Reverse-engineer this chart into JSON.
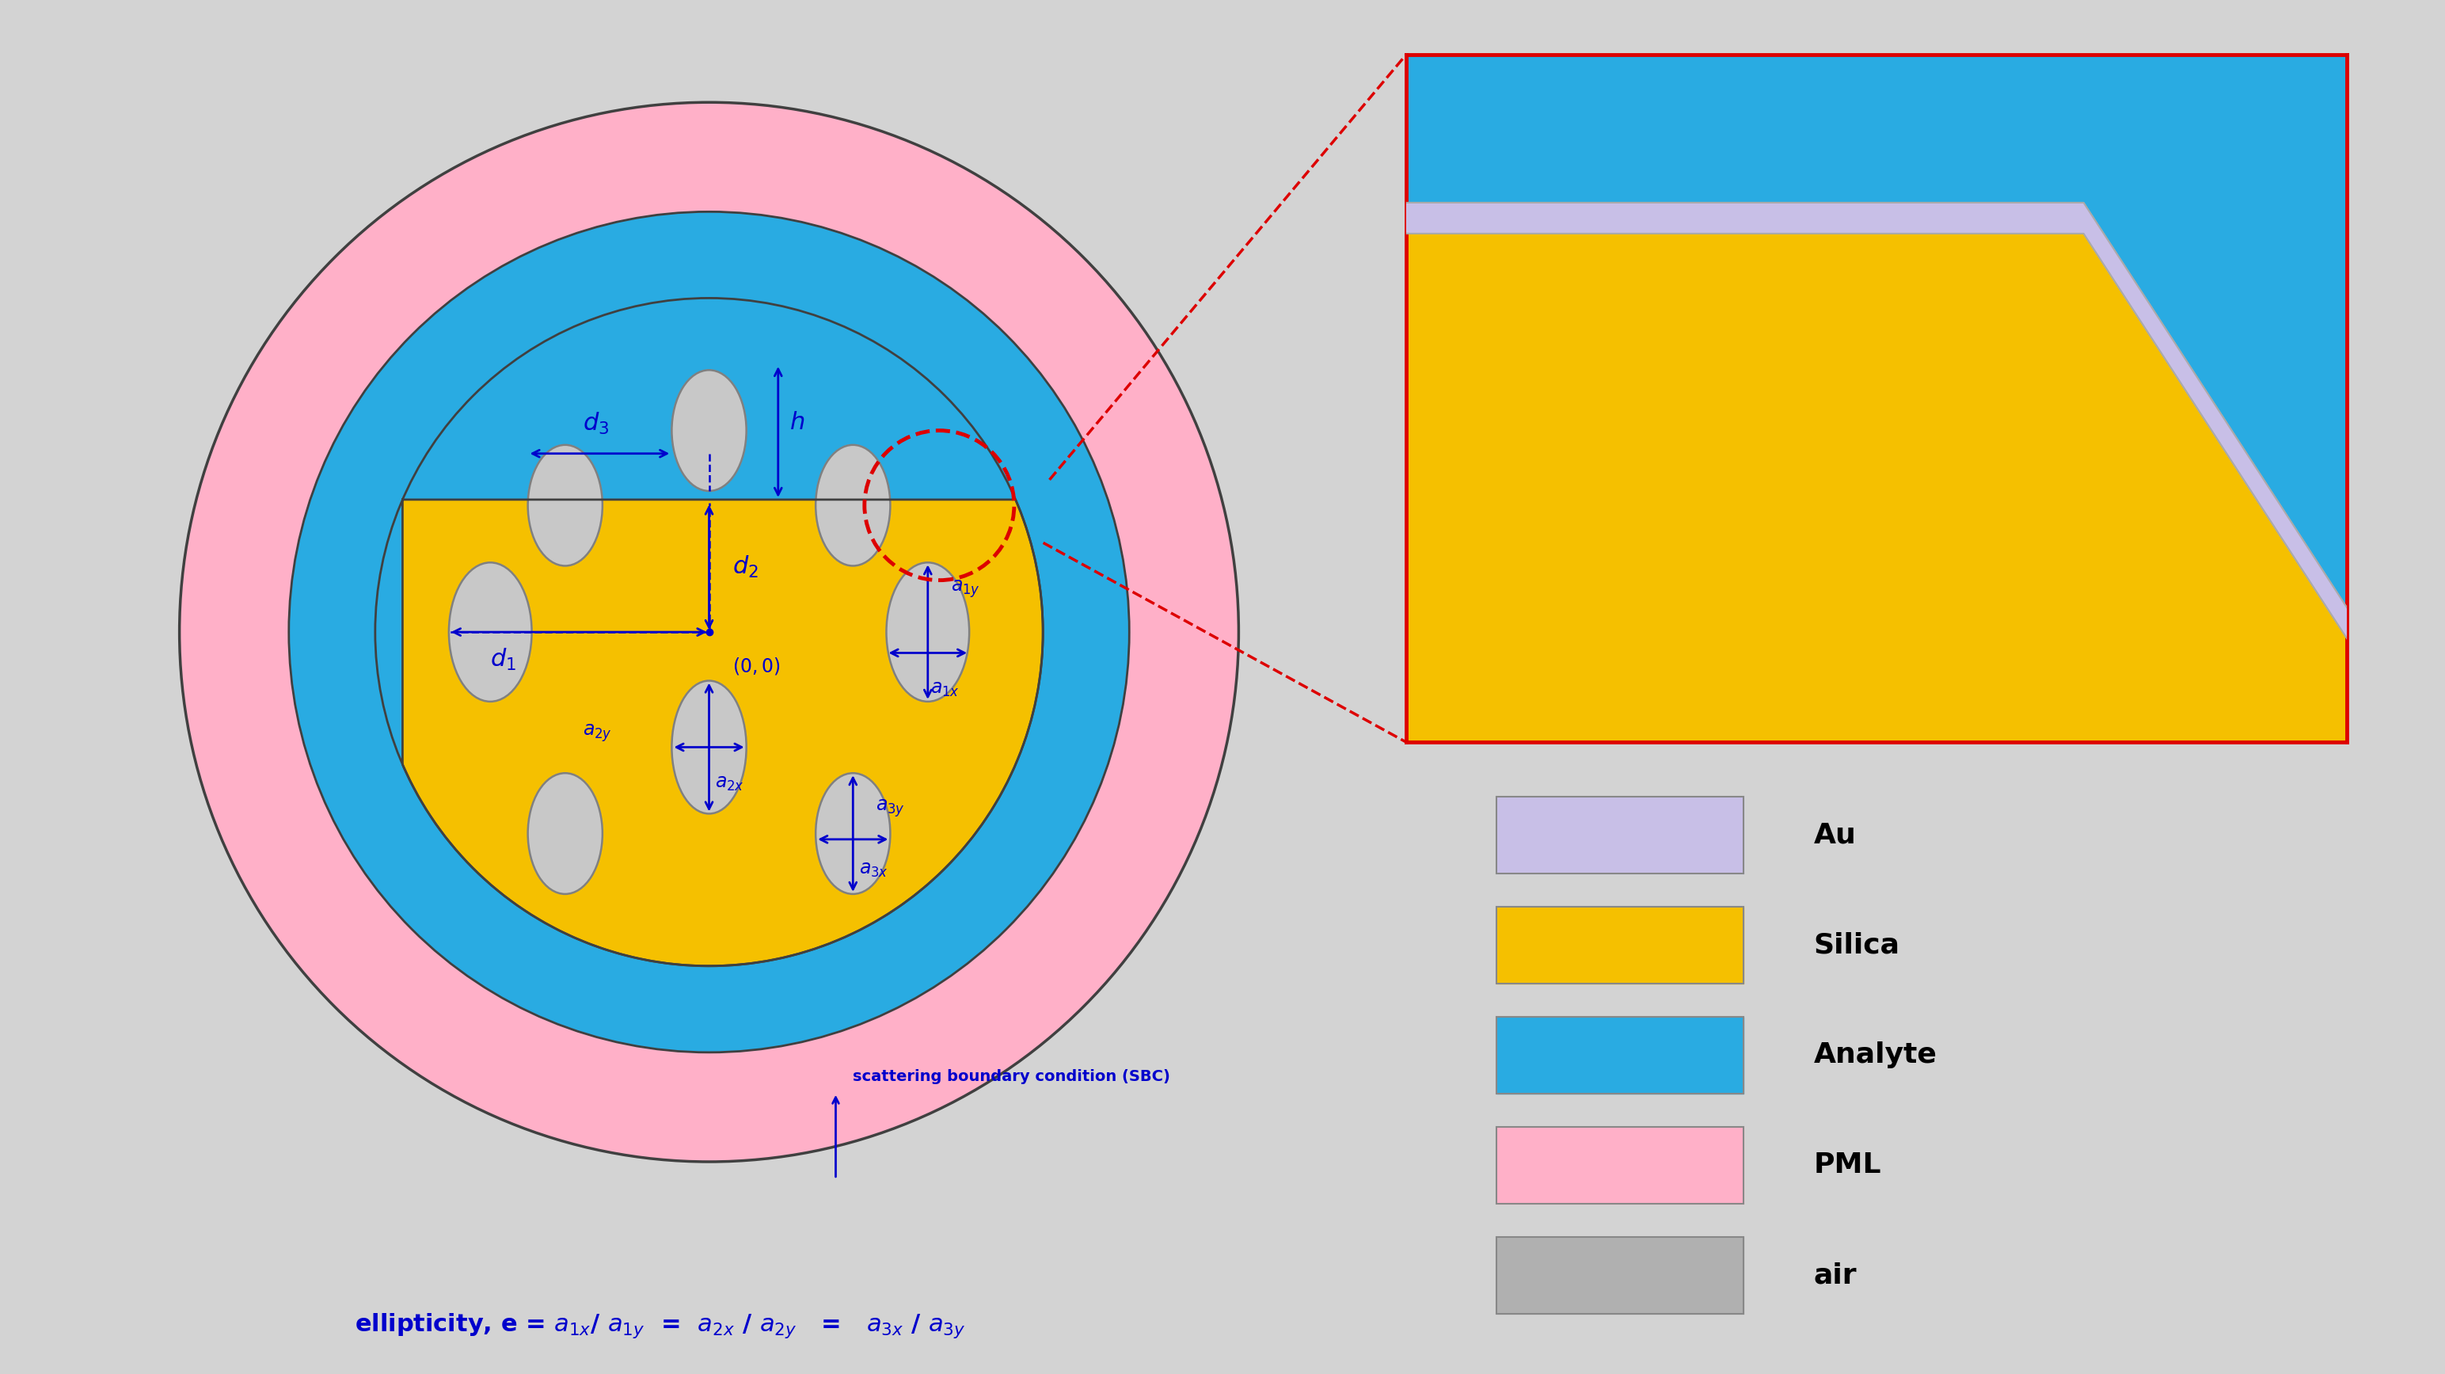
{
  "bg_color": "#d3d3d3",
  "pink_color": "#ffb0c8",
  "blue_color": "#29abe2",
  "gold_color": "#f5c000",
  "hole_color": "#c8c8c8",
  "hole_edge": "#808080",
  "au_color": "#c8bfe7",
  "dark_outline": "#404040",
  "arrow_color": "#0000cc",
  "red_dashed_color": "#dd0000",
  "legend_items": [
    {
      "color": "#c8bfe7",
      "label": "Au"
    },
    {
      "color": "#f5c000",
      "label": "Silica"
    },
    {
      "color": "#29abe2",
      "label": "Analyte"
    },
    {
      "color": "#ffb0c8",
      "label": "PML"
    },
    {
      "color": "#b0b0b0",
      "label": "air"
    }
  ]
}
